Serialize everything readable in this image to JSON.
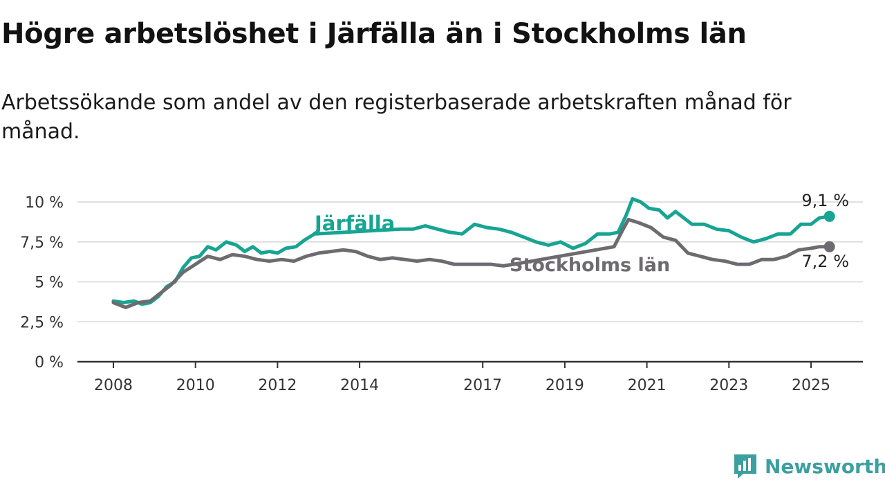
{
  "title": "Högre arbetslöshet i Järfälla än i Stockholms län",
  "subtitle": "Arbetssökande som andel av den registerbaserade arbetskraften månad för månad.",
  "brand": {
    "name": "Newsworthy"
  },
  "chart_data": {
    "type": "line",
    "title": "Högre arbetslöshet i Järfälla än i Stockholms län",
    "subtitle": "Arbetssökande som andel av den registerbaserade arbetskraften månad för månad.",
    "xlim": [
      2008.0,
      2026.3
    ],
    "ylim": [
      0,
      10
    ],
    "yticks": [
      0,
      2.5,
      5,
      7.5,
      10
    ],
    "ytick_labels": [
      "0 %",
      "2,5 %",
      "5 %",
      "7,5 %",
      "10 %"
    ],
    "xticks": [
      2008,
      2010,
      2012,
      2014,
      2017,
      2019,
      2021,
      2023,
      2025
    ],
    "xtick_labels": [
      "2008",
      "2010",
      "2012",
      "2014",
      "2017",
      "2019",
      "2021",
      "2023",
      "2025"
    ],
    "grid": true,
    "series": [
      {
        "name": "Järfälla",
        "color": "#17a492",
        "end_label": "9,1 %",
        "points": [
          [
            2008.0,
            3.8
          ],
          [
            2008.25,
            3.7
          ],
          [
            2008.5,
            3.8
          ],
          [
            2008.7,
            3.6
          ],
          [
            2008.9,
            3.7
          ],
          [
            2009.1,
            4.1
          ],
          [
            2009.3,
            4.7
          ],
          [
            2009.5,
            5.0
          ],
          [
            2009.7,
            5.9
          ],
          [
            2009.9,
            6.5
          ],
          [
            2010.1,
            6.6
          ],
          [
            2010.3,
            7.2
          ],
          [
            2010.5,
            7.0
          ],
          [
            2010.75,
            7.5
          ],
          [
            2011.0,
            7.3
          ],
          [
            2011.2,
            6.9
          ],
          [
            2011.4,
            7.2
          ],
          [
            2011.6,
            6.8
          ],
          [
            2011.8,
            6.9
          ],
          [
            2012.0,
            6.8
          ],
          [
            2012.2,
            7.1
          ],
          [
            2012.45,
            7.2
          ],
          [
            2012.65,
            7.6
          ],
          [
            2012.9,
            8.0
          ],
          [
            2015.0,
            8.3
          ],
          [
            2015.3,
            8.3
          ],
          [
            2015.6,
            8.5
          ],
          [
            2015.9,
            8.3
          ],
          [
            2016.2,
            8.1
          ],
          [
            2016.5,
            8.0
          ],
          [
            2016.8,
            8.6
          ],
          [
            2017.1,
            8.4
          ],
          [
            2017.4,
            8.3
          ],
          [
            2017.7,
            8.1
          ],
          [
            2018.0,
            7.8
          ],
          [
            2018.3,
            7.5
          ],
          [
            2018.6,
            7.3
          ],
          [
            2018.9,
            7.5
          ],
          [
            2019.2,
            7.1
          ],
          [
            2019.5,
            7.4
          ],
          [
            2019.8,
            8.0
          ],
          [
            2020.1,
            8.0
          ],
          [
            2020.3,
            8.1
          ],
          [
            2020.5,
            9.2
          ],
          [
            2020.65,
            10.2
          ],
          [
            2020.85,
            10.0
          ],
          [
            2021.05,
            9.6
          ],
          [
            2021.3,
            9.5
          ],
          [
            2021.5,
            9.0
          ],
          [
            2021.7,
            9.4
          ],
          [
            2021.9,
            9.0
          ],
          [
            2022.1,
            8.6
          ],
          [
            2022.4,
            8.6
          ],
          [
            2022.7,
            8.3
          ],
          [
            2023.0,
            8.2
          ],
          [
            2023.3,
            7.8
          ],
          [
            2023.6,
            7.5
          ],
          [
            2023.9,
            7.7
          ],
          [
            2024.2,
            8.0
          ],
          [
            2024.5,
            8.0
          ],
          [
            2024.75,
            8.6
          ],
          [
            2025.0,
            8.6
          ],
          [
            2025.2,
            9.0
          ],
          [
            2025.45,
            9.1
          ]
        ]
      },
      {
        "name": "Stockholms län",
        "color": "#6d6b70",
        "end_label": "7,2 %",
        "points": [
          [
            2008.0,
            3.7
          ],
          [
            2008.3,
            3.4
          ],
          [
            2008.6,
            3.7
          ],
          [
            2008.9,
            3.8
          ],
          [
            2009.1,
            4.2
          ],
          [
            2009.4,
            4.8
          ],
          [
            2009.7,
            5.6
          ],
          [
            2010.0,
            6.1
          ],
          [
            2010.3,
            6.6
          ],
          [
            2010.6,
            6.4
          ],
          [
            2010.9,
            6.7
          ],
          [
            2011.2,
            6.6
          ],
          [
            2011.5,
            6.4
          ],
          [
            2011.8,
            6.3
          ],
          [
            2012.1,
            6.4
          ],
          [
            2012.4,
            6.3
          ],
          [
            2012.7,
            6.6
          ],
          [
            2013.0,
            6.8
          ],
          [
            2013.3,
            6.9
          ],
          [
            2013.6,
            7.0
          ],
          [
            2013.9,
            6.9
          ],
          [
            2014.2,
            6.6
          ],
          [
            2014.5,
            6.4
          ],
          [
            2014.8,
            6.5
          ],
          [
            2015.1,
            6.4
          ],
          [
            2015.4,
            6.3
          ],
          [
            2015.7,
            6.4
          ],
          [
            2016.0,
            6.3
          ],
          [
            2016.3,
            6.1
          ],
          [
            2016.6,
            6.1
          ],
          [
            2016.9,
            6.1
          ],
          [
            2017.2,
            6.1
          ],
          [
            2017.5,
            6.0
          ],
          [
            2017.75,
            6.1
          ],
          [
            2020.2,
            7.2
          ],
          [
            2020.4,
            8.2
          ],
          [
            2020.55,
            8.9
          ],
          [
            2020.8,
            8.7
          ],
          [
            2021.1,
            8.4
          ],
          [
            2021.4,
            7.8
          ],
          [
            2021.7,
            7.6
          ],
          [
            2022.0,
            6.8
          ],
          [
            2022.3,
            6.6
          ],
          [
            2022.6,
            6.4
          ],
          [
            2022.9,
            6.3
          ],
          [
            2023.2,
            6.1
          ],
          [
            2023.5,
            6.1
          ],
          [
            2023.8,
            6.4
          ],
          [
            2024.1,
            6.4
          ],
          [
            2024.4,
            6.6
          ],
          [
            2024.7,
            7.0
          ],
          [
            2025.0,
            7.1
          ],
          [
            2025.2,
            7.2
          ],
          [
            2025.45,
            7.2
          ]
        ]
      }
    ]
  }
}
